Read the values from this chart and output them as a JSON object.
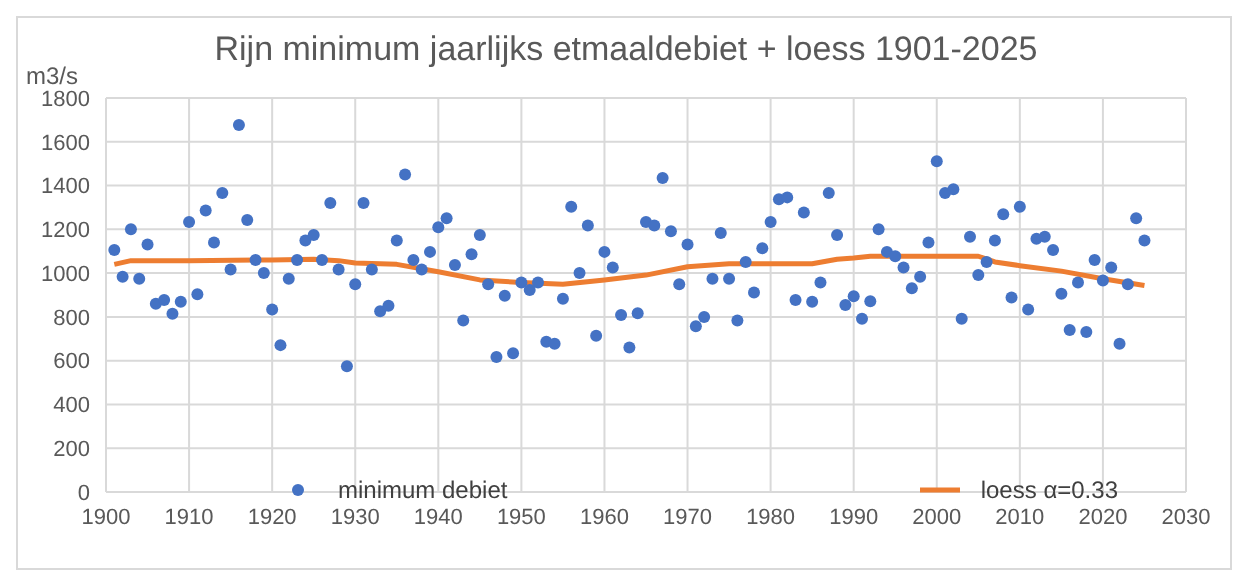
{
  "chart_data": {
    "type": "scatter",
    "title": "Rijn minimum jaarlijks etmaaldebiet + loess 1901-2025",
    "ylabel": "m3/s",
    "xlim": [
      1900,
      2030
    ],
    "xticks": [
      1900,
      1910,
      1920,
      1930,
      1940,
      1950,
      1960,
      1970,
      1980,
      1990,
      2000,
      2010,
      2020,
      2030
    ],
    "ylim": [
      0,
      1800
    ],
    "yticks": [
      0,
      200,
      400,
      600,
      800,
      1000,
      1200,
      1400,
      1600,
      1800
    ],
    "grid": true,
    "legend": "bottom",
    "series": [
      {
        "name": "minimum debiet",
        "marker": "circle",
        "color": "#4472c4",
        "x": [
          1901,
          1902,
          1903,
          1904,
          1905,
          1906,
          1907,
          1908,
          1909,
          1910,
          1911,
          1912,
          1913,
          1914,
          1915,
          1916,
          1917,
          1918,
          1919,
          1920,
          1921,
          1922,
          1923,
          1924,
          1925,
          1926,
          1927,
          1928,
          1929,
          1930,
          1931,
          1932,
          1933,
          1934,
          1935,
          1936,
          1937,
          1938,
          1939,
          1940,
          1941,
          1942,
          1943,
          1944,
          1945,
          1946,
          1947,
          1948,
          1949,
          1950,
          1951,
          1952,
          1953,
          1954,
          1955,
          1956,
          1957,
          1958,
          1959,
          1960,
          1961,
          1962,
          1963,
          1964,
          1965,
          1966,
          1967,
          1968,
          1969,
          1970,
          1971,
          1972,
          1973,
          1974,
          1975,
          1976,
          1977,
          1978,
          1979,
          1980,
          1981,
          1982,
          1983,
          1984,
          1985,
          1986,
          1987,
          1988,
          1989,
          1990,
          1991,
          1992,
          1993,
          1994,
          1995,
          1996,
          1997,
          1998,
          1999,
          2000,
          2001,
          2002,
          2003,
          2004,
          2005,
          2006,
          2007,
          2008,
          2009,
          2010,
          2011,
          2012,
          2013,
          2014,
          2015,
          2016,
          2017,
          2018,
          2019,
          2020,
          2021,
          2022,
          2023,
          2024,
          2025
        ],
        "values": [
          1106,
          983,
          1200,
          974,
          1131,
          860,
          877,
          814,
          869,
          1234,
          903,
          1286,
          1140,
          1366,
          1017,
          1677,
          1243,
          1060,
          1000,
          834,
          671,
          974,
          1060,
          1149,
          1174,
          1060,
          1320,
          1017,
          574,
          949,
          1320,
          1017,
          826,
          851,
          1149,
          1451,
          1060,
          1017,
          1097,
          1209,
          1251,
          1037,
          783,
          1086,
          1174,
          949,
          617,
          897,
          634,
          957,
          923,
          957,
          686,
          677,
          883,
          1303,
          1000,
          1217,
          714,
          1097,
          1026,
          809,
          660,
          817,
          1234,
          1217,
          1434,
          1191,
          949,
          1131,
          757,
          800,
          974,
          1183,
          974,
          783,
          1051,
          911,
          1114,
          1234,
          1337,
          1346,
          877,
          1277,
          869,
          957,
          1366,
          1174,
          854,
          894,
          791,
          871,
          1200,
          1097,
          1077,
          1026,
          931,
          983,
          1140,
          1511,
          1366,
          1383,
          791,
          1166,
          991,
          1051,
          1149,
          1269,
          889,
          1303,
          834,
          1157,
          1166,
          1106,
          906,
          740,
          957,
          731,
          1060,
          966,
          1026,
          677,
          949,
          1251,
          1149
        ]
      },
      {
        "name": "loess α=0.33",
        "type": "line",
        "marker": "none",
        "line_style": "solid",
        "color": "#ed7d31",
        "x": [
          1901,
          1903,
          1910,
          1920,
          1925,
          1928,
          1930,
          1935,
          1940,
          1945,
          1950,
          1955,
          1960,
          1965,
          1970,
          1975,
          1980,
          1985,
          1988,
          1990,
          1992,
          1995,
          2000,
          2005,
          2007,
          2010,
          2015,
          2020,
          2025
        ],
        "values": [
          1040,
          1057,
          1057,
          1060,
          1063,
          1057,
          1046,
          1040,
          1006,
          969,
          957,
          949,
          969,
          991,
          1029,
          1043,
          1043,
          1043,
          1063,
          1069,
          1077,
          1077,
          1077,
          1077,
          1051,
          1034,
          1009,
          974,
          943
        ]
      }
    ]
  }
}
